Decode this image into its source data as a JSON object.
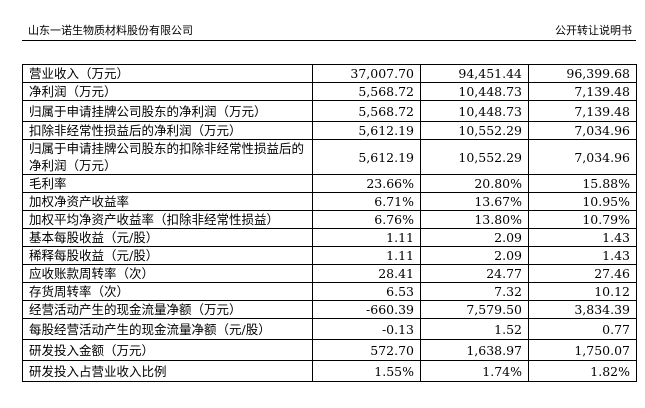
{
  "header": {
    "company": "山东一诺生物质材料股份有限公司",
    "doc_title": "公开转让说明书"
  },
  "table": {
    "rows": [
      {
        "label": "营业收入（万元）",
        "v1": "37,007.70",
        "v2": "94,451.44",
        "v3": "96,399.68"
      },
      {
        "label": "净利润（万元）",
        "v1": "5,568.72",
        "v2": "10,448.73",
        "v3": "7,139.48"
      },
      {
        "label": "归属于申请挂牌公司股东的净利润（万元）",
        "v1": "5,568.72",
        "v2": "10,448.73",
        "v3": "7,139.48"
      },
      {
        "label": "扣除非经常性损益后的净利润（万元）",
        "v1": "5,612.19",
        "v2": "10,552.29",
        "v3": "7,034.96"
      },
      {
        "label": "归属于申请挂牌公司股东的扣除非经常性损益后的净利润（万元）",
        "v1": "5,612.19",
        "v2": "10,552.29",
        "v3": "7,034.96"
      },
      {
        "label": "毛利率",
        "v1": "23.66%",
        "v2": "20.80%",
        "v3": "15.88%"
      },
      {
        "label": "加权净资产收益率",
        "v1": "6.71%",
        "v2": "13.67%",
        "v3": "10.95%"
      },
      {
        "label": "加权平均净资产收益率（扣除非经常性损益）",
        "v1": "6.76%",
        "v2": "13.80%",
        "v3": "10.79%"
      },
      {
        "label": "基本每股收益（元/股）",
        "v1": "1.11",
        "v2": "2.09",
        "v3": "1.43"
      },
      {
        "label": "稀释每股收益（元/股）",
        "v1": "1.11",
        "v2": "2.09",
        "v3": "1.43"
      },
      {
        "label": "应收账款周转率（次）",
        "v1": "28.41",
        "v2": "24.77",
        "v3": "27.46"
      },
      {
        "label": "存货周转率（次）",
        "v1": "6.53",
        "v2": "7.32",
        "v3": "10.12"
      },
      {
        "label": "经营活动产生的现金流量净额（万元）",
        "v1": "-660.39",
        "v2": "7,579.50",
        "v3": "3,834.39"
      },
      {
        "label": "每股经营活动产生的现金流量净额（元/股）",
        "v1": "-0.13",
        "v2": "1.52",
        "v3": "0.77"
      },
      {
        "label": "研发投入金额（万元）",
        "v1": "572.70",
        "v2": "1,638.97",
        "v3": "1,750.07"
      },
      {
        "label": "研发投入占营业收入比例",
        "v1": "1.55%",
        "v2": "1.74%",
        "v3": "1.82%"
      }
    ]
  }
}
